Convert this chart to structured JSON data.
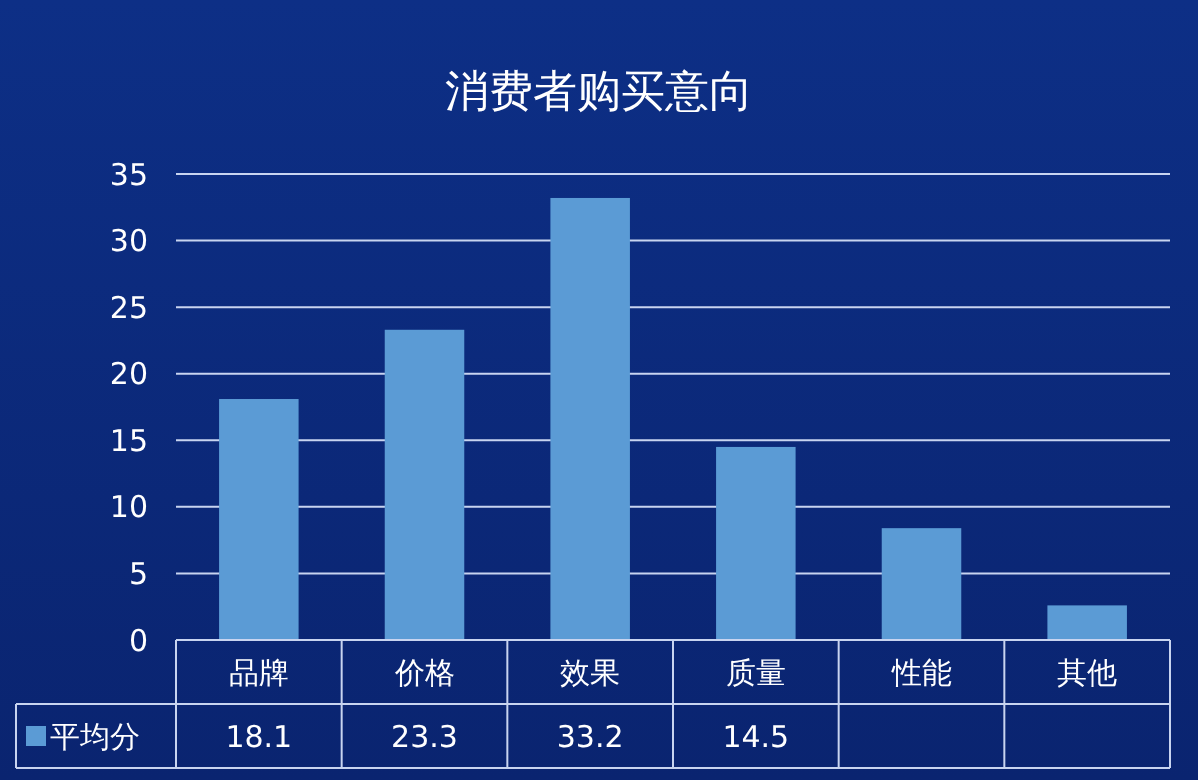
{
  "chart_data": {
    "type": "bar",
    "title": "消费者购买意向",
    "categories": [
      "品牌",
      "价格",
      "效果",
      "质量",
      "性能",
      "其他"
    ],
    "series": [
      {
        "name": "平均分",
        "color": "#5b9bd5",
        "values": [
          18.1,
          23.3,
          33.2,
          14.5,
          8.4,
          2.6
        ],
        "value_labels": [
          "18.1",
          "23.3",
          "33.2",
          "14.5",
          null,
          null
        ]
      }
    ],
    "ylim": [
      0,
      35
    ],
    "yticks": [
      0,
      5,
      10,
      15,
      20,
      25,
      30,
      35
    ],
    "grid": "y",
    "legend": "bottom"
  }
}
